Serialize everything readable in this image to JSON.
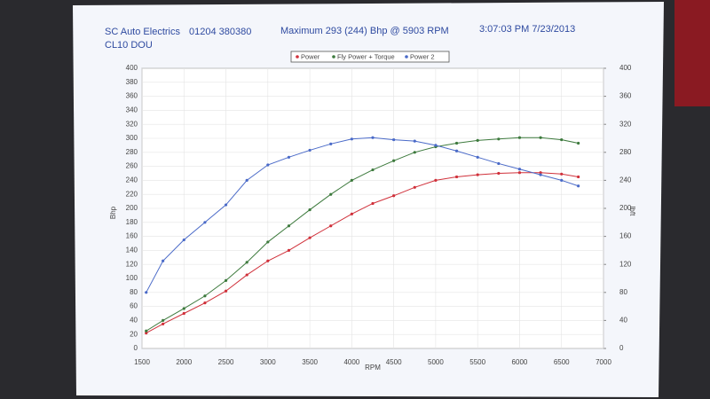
{
  "header": {
    "company": "SC Auto Electrics",
    "phone": "01204 380380",
    "maximum": "Maximum 293 (244) Bhp @ 5903 RPM",
    "timestamp": "3:07:03 PM 7/23/2013",
    "vehicle": "CL10 DOU"
  },
  "chart_data": {
    "type": "line",
    "x_label": "RPM",
    "y_label": "Bhp",
    "y2_label": "lbft",
    "x": [
      1550,
      1750,
      2000,
      2250,
      2500,
      2750,
      3000,
      3250,
      3500,
      3750,
      4000,
      4250,
      4500,
      4750,
      5000,
      5250,
      5500,
      5750,
      6000,
      6250,
      6500,
      6700
    ],
    "series": [
      {
        "name": "Power",
        "color": "#d0303a",
        "values": [
          22,
          35,
          50,
          65,
          82,
          105,
          125,
          140,
          158,
          175,
          192,
          207,
          218,
          230,
          240,
          245,
          248,
          250,
          251,
          251,
          249,
          245
        ]
      },
      {
        "name": "Fly Power + Torque",
        "color": "#3d7a3d",
        "values": [
          25,
          40,
          57,
          75,
          97,
          123,
          152,
          175,
          198,
          220,
          240,
          255,
          268,
          280,
          288,
          293,
          297,
          299,
          301,
          301,
          298,
          293
        ]
      },
      {
        "name": "Power 2",
        "color": "#4a6ac8",
        "values": [
          80,
          125,
          155,
          180,
          205,
          240,
          262,
          273,
          283,
          292,
          299,
          301,
          298,
          296,
          290,
          282,
          273,
          264,
          256,
          248,
          240,
          232
        ]
      }
    ],
    "xlim": [
      1500,
      7000
    ],
    "xticks": [
      1500,
      2000,
      2500,
      3000,
      3500,
      4000,
      4500,
      5000,
      5500,
      6000,
      6500,
      7000
    ],
    "ylim": [
      0,
      400
    ],
    "yticks": [
      0,
      20,
      40,
      60,
      80,
      100,
      120,
      140,
      160,
      180,
      200,
      220,
      240,
      260,
      280,
      300,
      320,
      340,
      360,
      380,
      400
    ],
    "y2lim": [
      0,
      400
    ],
    "y2ticks": [
      0,
      40,
      80,
      120,
      160,
      200,
      240,
      280,
      320,
      360,
      400
    ],
    "grid": true
  }
}
